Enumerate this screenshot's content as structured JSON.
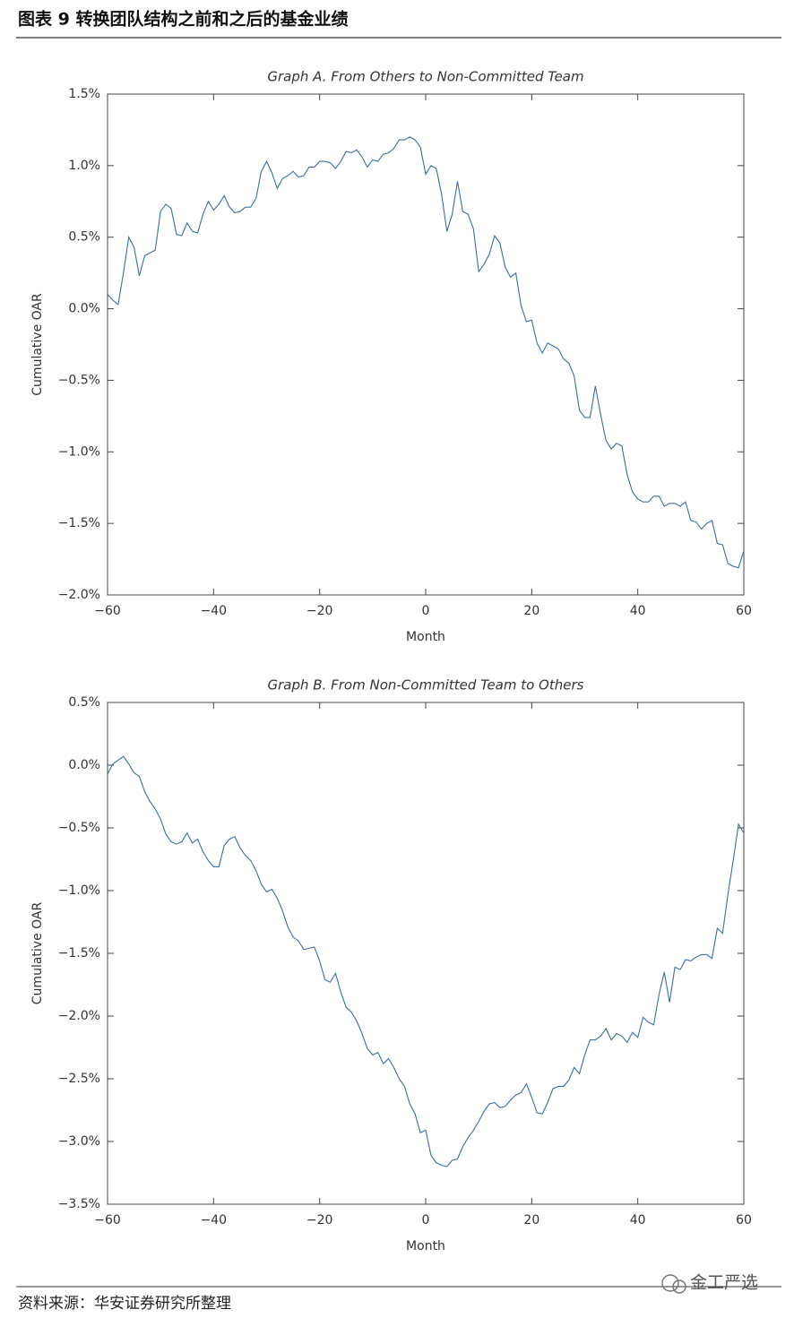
{
  "header": {
    "title": "图表 9  转换团队结构之前和之后的基金业绩"
  },
  "chart_data": [
    {
      "type": "line",
      "title": "Graph A. From Others to Non-Committed Team",
      "x_label": "Month",
      "y_label": "Cumulative OAR",
      "color": "#3a6ea5",
      "x": [
        -60,
        -59,
        -58,
        -57,
        -56,
        -55,
        -54,
        -53,
        -52,
        -51,
        -50,
        -49,
        -48,
        -47,
        -46,
        -45,
        -44,
        -43,
        -42,
        -41,
        -40,
        -39,
        -38,
        -37,
        -36,
        -35,
        -34,
        -33,
        -32,
        -31,
        -30,
        -29,
        -28,
        -27,
        -26,
        -25,
        -24,
        -23,
        -22,
        -21,
        -20,
        -19,
        -18,
        -17,
        -16,
        -15,
        -14,
        -13,
        -12,
        -11,
        -10,
        -9,
        -8,
        -7,
        -6,
        -5,
        -4,
        -3,
        -2,
        -1,
        0,
        1,
        2,
        3,
        4,
        5,
        6,
        7,
        8,
        9,
        10,
        11,
        12,
        13,
        14,
        15,
        16,
        17,
        18,
        19,
        20,
        21,
        22,
        23,
        24,
        25,
        26,
        27,
        28,
        29,
        30,
        31,
        32,
        33,
        34,
        35,
        36,
        37,
        38,
        39,
        40,
        41,
        42,
        43,
        44,
        45,
        46,
        47,
        48,
        49,
        50,
        51,
        52,
        53,
        54,
        55,
        56,
        57,
        58,
        59,
        60
      ],
      "values": [
        0.1,
        0.06,
        0.03,
        0.25,
        0.5,
        0.43,
        0.23,
        0.37,
        0.39,
        0.41,
        0.68,
        0.73,
        0.7,
        0.52,
        0.51,
        0.6,
        0.54,
        0.53,
        0.66,
        0.75,
        0.69,
        0.73,
        0.79,
        0.71,
        0.67,
        0.68,
        0.71,
        0.71,
        0.77,
        0.96,
        1.03,
        0.95,
        0.84,
        0.91,
        0.93,
        0.96,
        0.92,
        0.93,
        0.99,
        0.99,
        1.03,
        1.03,
        1.02,
        0.98,
        1.03,
        1.1,
        1.09,
        1.11,
        1.06,
        0.99,
        1.04,
        1.03,
        1.08,
        1.09,
        1.12,
        1.18,
        1.18,
        1.2,
        1.18,
        1.13,
        0.94,
        1.0,
        0.98,
        0.8,
        0.54,
        0.66,
        0.89,
        0.68,
        0.66,
        0.56,
        0.26,
        0.31,
        0.38,
        0.51,
        0.46,
        0.29,
        0.22,
        0.25,
        0.02,
        -0.09,
        -0.08,
        -0.24,
        -0.31,
        -0.24,
        -0.26,
        -0.28,
        -0.35,
        -0.38,
        -0.47,
        -0.71,
        -0.76,
        -0.76,
        -0.54,
        -0.74,
        -0.92,
        -0.98,
        -0.94,
        -0.96,
        -1.16,
        -1.28,
        -1.33,
        -1.35,
        -1.35,
        -1.31,
        -1.31,
        -1.38,
        -1.36,
        -1.36,
        -1.38,
        -1.35,
        -1.48,
        -1.49,
        -1.54,
        -1.5,
        -1.48,
        -1.64,
        -1.65,
        -1.78,
        -1.8,
        -1.81,
        -1.69
      ],
      "xlim": [
        -60,
        60
      ],
      "ylim": [
        -2.0,
        1.5
      ],
      "xticks": [
        {
          "value": -60,
          "label": "−60"
        },
        {
          "value": -40,
          "label": "−40"
        },
        {
          "value": -20,
          "label": "−20"
        },
        0,
        20,
        40,
        60
      ],
      "yticks": [
        {
          "value": -2.0,
          "label": "−2.0%"
        },
        {
          "value": -1.5,
          "label": "−1.5%"
        },
        {
          "value": -1.0,
          "label": "−1.0%"
        },
        {
          "value": -0.5,
          "label": "−0.5%"
        },
        {
          "value": 0,
          "label": "0.0%"
        },
        {
          "value": 0.5,
          "label": "0.5%"
        },
        {
          "value": 1.0,
          "label": "1.0%"
        },
        {
          "value": 1.5,
          "label": "1.5%"
        }
      ]
    },
    {
      "type": "line",
      "title": "Graph B. From Non-Committed Team to Others",
      "x_label": "Month",
      "y_label": "Cumulative OAR",
      "color": "#3a6ea5",
      "x": [
        -60,
        -59,
        -58,
        -57,
        -56,
        -55,
        -54,
        -53,
        -52,
        -51,
        -50,
        -49,
        -48,
        -47,
        -46,
        -45,
        -44,
        -43,
        -42,
        -41,
        -40,
        -39,
        -38,
        -37,
        -36,
        -35,
        -34,
        -33,
        -32,
        -31,
        -30,
        -29,
        -28,
        -27,
        -26,
        -25,
        -24,
        -23,
        -22,
        -21,
        -20,
        -19,
        -18,
        -17,
        -16,
        -15,
        -14,
        -13,
        -12,
        -11,
        -10,
        -9,
        -8,
        -7,
        -6,
        -5,
        -4,
        -3,
        -2,
        -1,
        0,
        1,
        2,
        3,
        4,
        5,
        6,
        7,
        8,
        9,
        10,
        11,
        12,
        13,
        14,
        15,
        16,
        17,
        18,
        19,
        20,
        21,
        22,
        23,
        24,
        25,
        26,
        27,
        28,
        29,
        30,
        31,
        32,
        33,
        34,
        35,
        36,
        37,
        38,
        39,
        40,
        41,
        42,
        43,
        44,
        45,
        46,
        47,
        48,
        49,
        50,
        51,
        52,
        53,
        54,
        55,
        56,
        57,
        58,
        59,
        60
      ],
      "values": [
        -0.07,
        0.01,
        0.04,
        0.07,
        0.01,
        -0.06,
        -0.09,
        -0.21,
        -0.29,
        -0.35,
        -0.43,
        -0.55,
        -0.61,
        -0.63,
        -0.61,
        -0.54,
        -0.62,
        -0.59,
        -0.69,
        -0.76,
        -0.81,
        -0.81,
        -0.64,
        -0.59,
        -0.57,
        -0.66,
        -0.72,
        -0.76,
        -0.84,
        -0.95,
        -1.01,
        -0.99,
        -1.06,
        -1.16,
        -1.29,
        -1.37,
        -1.4,
        -1.47,
        -1.46,
        -1.45,
        -1.56,
        -1.71,
        -1.73,
        -1.66,
        -1.81,
        -1.93,
        -1.97,
        -2.04,
        -2.14,
        -2.26,
        -2.31,
        -2.29,
        -2.38,
        -2.34,
        -2.41,
        -2.5,
        -2.56,
        -2.7,
        -2.78,
        -2.93,
        -2.91,
        -3.11,
        -3.17,
        -3.19,
        -3.2,
        -3.15,
        -3.14,
        -3.04,
        -2.97,
        -2.91,
        -2.84,
        -2.76,
        -2.7,
        -2.69,
        -2.73,
        -2.72,
        -2.67,
        -2.63,
        -2.61,
        -2.54,
        -2.65,
        -2.77,
        -2.78,
        -2.69,
        -2.58,
        -2.56,
        -2.56,
        -2.51,
        -2.41,
        -2.46,
        -2.31,
        -2.19,
        -2.19,
        -2.16,
        -2.1,
        -2.19,
        -2.14,
        -2.16,
        -2.21,
        -2.13,
        -2.17,
        -2.01,
        -2.05,
        -2.07,
        -1.83,
        -1.65,
        -1.89,
        -1.61,
        -1.63,
        -1.55,
        -1.56,
        -1.53,
        -1.51,
        -1.51,
        -1.54,
        -1.3,
        -1.34,
        -1.03,
        -0.76,
        -0.47,
        -0.54
      ],
      "xlim": [
        -60,
        60
      ],
      "ylim": [
        -3.5,
        0.5
      ],
      "xticks": [
        {
          "value": -60,
          "label": "−60"
        },
        {
          "value": -40,
          "label": "−40"
        },
        {
          "value": -20,
          "label": "−20"
        },
        0,
        20,
        40,
        60
      ],
      "yticks": [
        {
          "value": -3.5,
          "label": "−3.5%"
        },
        {
          "value": -3.0,
          "label": "−3.0%"
        },
        {
          "value": -2.5,
          "label": "−2.5%"
        },
        {
          "value": -2.0,
          "label": "−2.0%"
        },
        {
          "value": -1.5,
          "label": "−1.5%"
        },
        {
          "value": -1.0,
          "label": "−1.0%"
        },
        {
          "value": -0.5,
          "label": "−0.5%"
        },
        {
          "value": 0,
          "label": "0.0%"
        },
        {
          "value": 0.5,
          "label": "0.5%"
        }
      ]
    }
  ],
  "watermark": "金工严选",
  "footer": {
    "source": "资料来源：华安证券研究所整理"
  }
}
